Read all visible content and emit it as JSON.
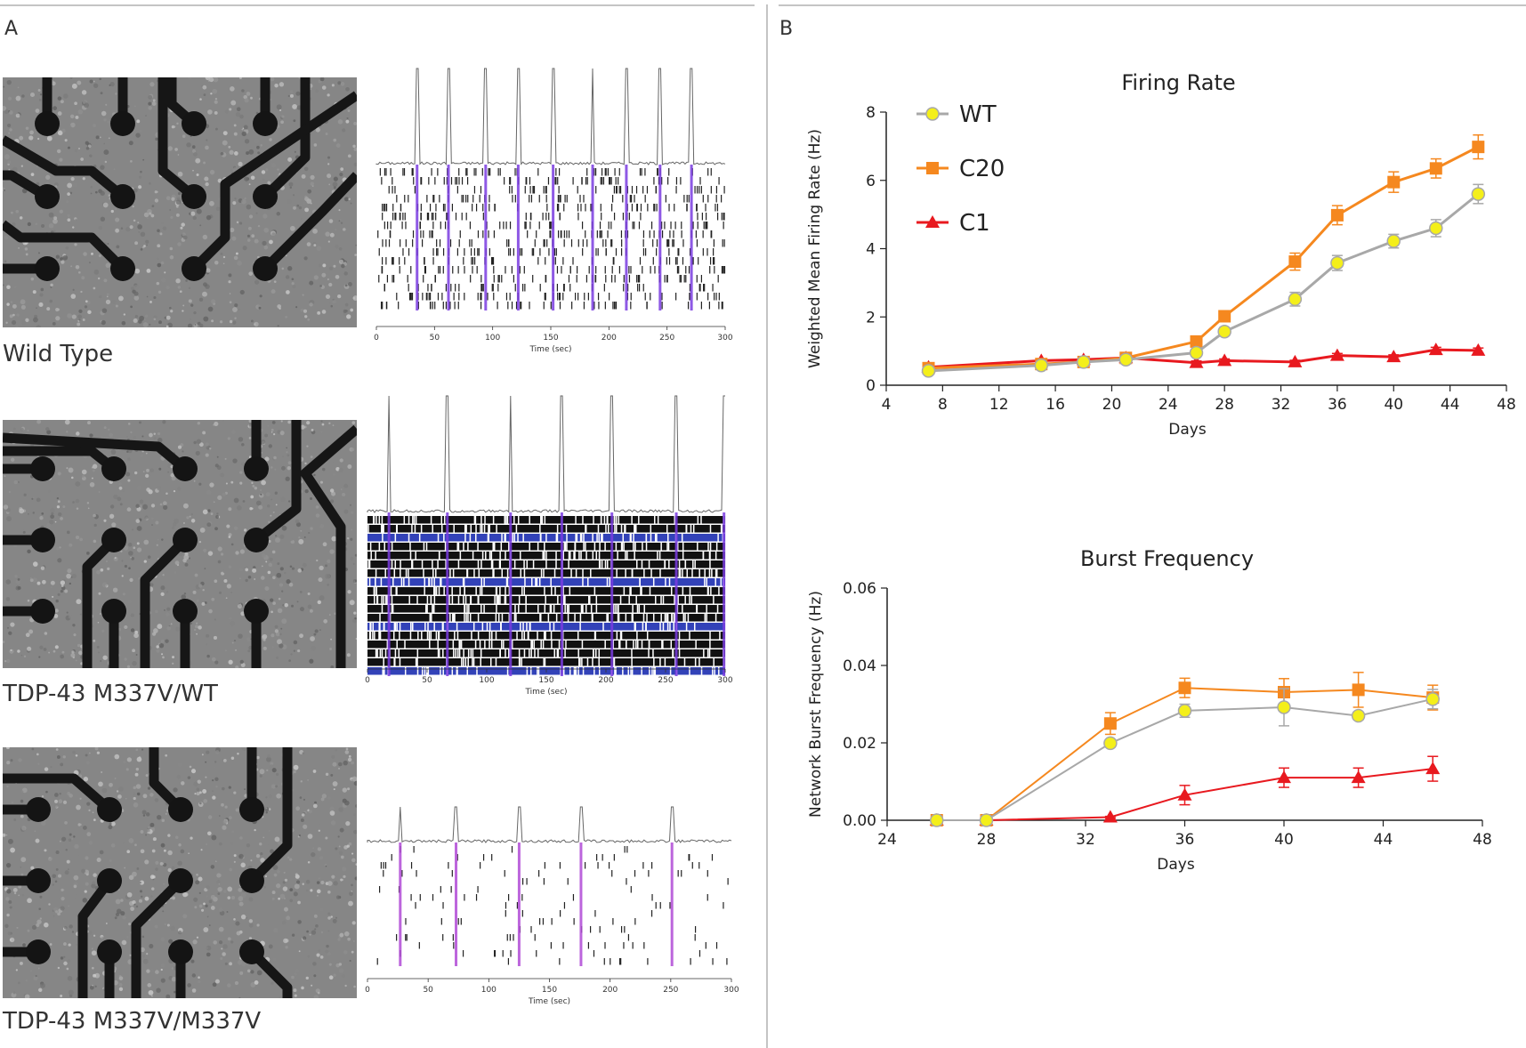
{
  "panels": {
    "a_label": "A",
    "b_label": "B",
    "conditions": [
      {
        "label": "Wild Type",
        "raster_xlabel": "Time (sec)",
        "raster_ticks": [
          "0",
          "50",
          "100",
          "150",
          "200",
          "250",
          "300"
        ]
      },
      {
        "label": "TDP-43 M337V/WT",
        "raster_xlabel": "Time (sec)",
        "raster_ticks": [
          "0",
          "50",
          "100",
          "150",
          "200",
          "250",
          "300"
        ]
      },
      {
        "label": "TDP-43 M337V/M337V",
        "raster_xlabel": "Time (sec)",
        "raster_ticks": [
          "0",
          "50",
          "100",
          "150",
          "200",
          "250",
          "300"
        ]
      }
    ]
  },
  "colors": {
    "WT": "#f4ef1a",
    "WT_line": "#a8a8a8",
    "C20": "#f5881f",
    "C1": "#e8191f",
    "axis": "#333333",
    "burst_line": "#8a44d8"
  },
  "chart_data": [
    {
      "type": "line",
      "title": "Firing Rate",
      "xlabel": "Days",
      "ylabel": "Weighted Mean Firing Rate (Hz)",
      "xlim": [
        4,
        48
      ],
      "ylim": [
        0,
        8
      ],
      "xticks": [
        "4",
        "8",
        "12",
        "16",
        "20",
        "24",
        "28",
        "32",
        "36",
        "40",
        "44",
        "48"
      ],
      "yticks": [
        "0",
        "2",
        "4",
        "6",
        "8"
      ],
      "legend": {
        "placement": "top-left",
        "entries": [
          "WT",
          "C20",
          "C1"
        ]
      },
      "series": [
        {
          "name": "WT",
          "marker": "circle",
          "x": [
            7,
            15,
            18,
            21,
            26,
            28,
            33,
            36,
            40,
            43,
            46
          ],
          "y": [
            0.42,
            0.58,
            0.68,
            0.75,
            0.95,
            1.57,
            2.52,
            3.58,
            4.22,
            4.6,
            5.6
          ],
          "err": [
            0.05,
            0.06,
            0.07,
            0.08,
            0.1,
            0.12,
            0.2,
            0.22,
            0.2,
            0.25,
            0.28
          ]
        },
        {
          "name": "C20",
          "marker": "square",
          "x": [
            7,
            15,
            18,
            21,
            26,
            28,
            33,
            36,
            40,
            43,
            46
          ],
          "y": [
            0.5,
            0.62,
            0.68,
            0.8,
            1.28,
            2.02,
            3.62,
            4.98,
            5.95,
            6.35,
            6.98
          ],
          "err": [
            0.05,
            0.06,
            0.07,
            0.08,
            0.1,
            0.12,
            0.25,
            0.28,
            0.3,
            0.28,
            0.35
          ]
        },
        {
          "name": "C1",
          "marker": "triangle",
          "x": [
            7,
            15,
            18,
            21,
            26,
            28,
            33,
            36,
            40,
            43,
            46
          ],
          "y": [
            0.53,
            0.72,
            0.75,
            0.8,
            0.66,
            0.72,
            0.68,
            0.87,
            0.83,
            1.04,
            1.02
          ],
          "err": [
            0.04,
            0.05,
            0.05,
            0.05,
            0.05,
            0.05,
            0.05,
            0.06,
            0.06,
            0.07,
            0.07
          ]
        }
      ]
    },
    {
      "type": "line",
      "title": "Burst Frequency",
      "xlabel": "Days",
      "ylabel": "Network Burst Frequency (Hz)",
      "xlim": [
        24,
        48
      ],
      "ylim": [
        0,
        0.06
      ],
      "xticks": [
        "24",
        "28",
        "32",
        "36",
        "40",
        "44",
        "48"
      ],
      "yticks": [
        "0.00",
        "0.02",
        "0.04",
        "0.06"
      ],
      "series": [
        {
          "name": "WT",
          "marker": "circle",
          "x": [
            26,
            28,
            33,
            36,
            40,
            43,
            46
          ],
          "y": [
            0,
            0,
            0.0199,
            0.0283,
            0.0292,
            0.027,
            0.0313
          ],
          "err": [
            0,
            0,
            0.001,
            0.0017,
            0.0048,
            0.001,
            0.0025
          ]
        },
        {
          "name": "C20",
          "marker": "square",
          "x": [
            26,
            28,
            33,
            36,
            40,
            43,
            46
          ],
          "y": [
            0,
            0,
            0.025,
            0.0342,
            0.0331,
            0.0337,
            0.0317
          ],
          "err": [
            0,
            0,
            0.0028,
            0.0025,
            0.0035,
            0.0045,
            0.0032
          ]
        },
        {
          "name": "C1",
          "marker": "triangle",
          "x": [
            26,
            28,
            33,
            36,
            40,
            43,
            46
          ],
          "y": [
            0,
            0,
            0.0008,
            0.0065,
            0.011,
            0.011,
            0.0133
          ],
          "err": [
            0,
            0,
            0.0002,
            0.0025,
            0.0025,
            0.0025,
            0.0032
          ]
        }
      ]
    }
  ]
}
